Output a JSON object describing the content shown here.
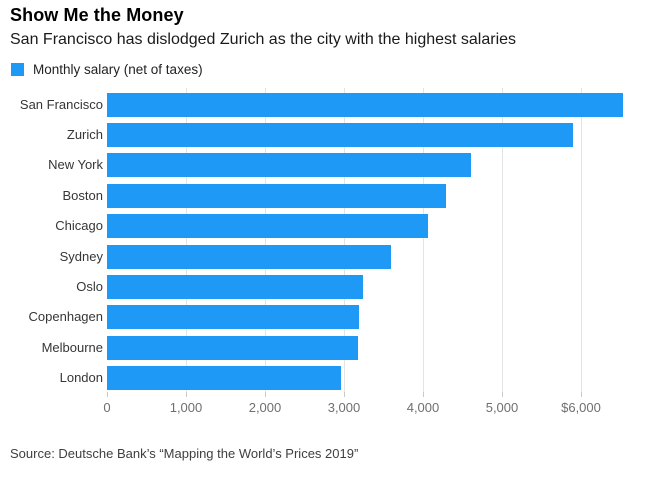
{
  "header": {
    "title": "Show Me the Money",
    "subtitle": "San Francisco has dislodged Zurich as the city with the highest salaries"
  },
  "legend": {
    "label": "Monthly salary (net of taxes)",
    "swatch_color": "#1e9af6"
  },
  "chart_data": {
    "type": "bar",
    "orientation": "horizontal",
    "title": "Show Me the Money",
    "subtitle": "San Francisco has dislodged Zurich as the city with the highest salaries",
    "series_label": "Monthly salary (net of taxes)",
    "categories": [
      "San Francisco",
      "Zurich",
      "New York",
      "Boston",
      "Chicago",
      "Sydney",
      "Oslo",
      "Copenhagen",
      "Melbourne",
      "London"
    ],
    "values": [
      6526,
      5896,
      4612,
      4288,
      4062,
      3599,
      3246,
      3190,
      3181,
      2956
    ],
    "xlabel": "",
    "ylabel": "",
    "xlim": [
      0,
      6850
    ],
    "x_ticks": [
      "0",
      "1,000",
      "2,000",
      "3,000",
      "4,000",
      "5,000",
      "$6,000"
    ],
    "x_tick_values": [
      0,
      1000,
      2000,
      3000,
      4000,
      5000,
      6000
    ],
    "grid": "vertical",
    "legend_position": "top-left",
    "bar_color": "#1e9af6"
  },
  "source": {
    "text": "Source: Deutsche Bank’s “Mapping the World’s Prices 2019”"
  },
  "colors": {
    "accent": "#1e9af6",
    "background": "#ffffff",
    "grid": "#e4e4e4",
    "axis_text": "#6f6f6f",
    "category_text": "#363636",
    "title_text": "#000000",
    "source_text": "#3f3f3f"
  }
}
